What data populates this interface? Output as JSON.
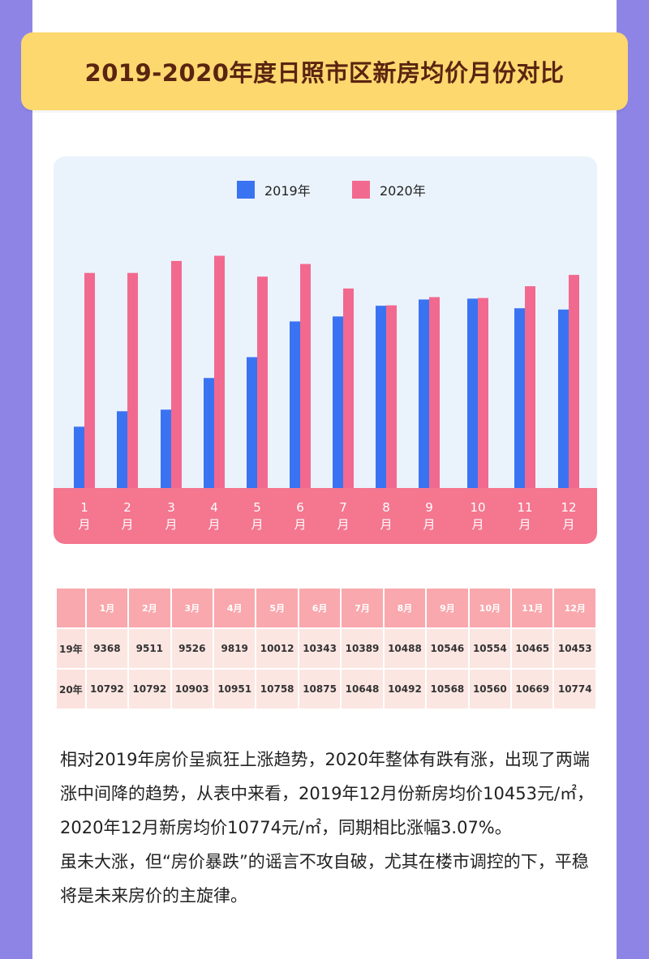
{
  "header": {
    "title": "2019-2020年度日照市区新房均价月份对比"
  },
  "colors": {
    "series_2019": "#3a73f2",
    "series_2020": "#f2698f",
    "banner": "#fcd86e",
    "axis_band": "#f4768f",
    "panel": "#eaf3fc"
  },
  "chart_data": {
    "type": "bar",
    "categories": [
      "1\n月",
      "2\n月",
      "3\n月",
      "4\n月",
      "5\n月",
      "6\n月",
      "7\n月",
      "8\n月",
      "9\n月",
      "10\n月",
      "11\n月",
      "12\n月"
    ],
    "series": [
      {
        "name": "2019年",
        "values": [
          9368,
          9511,
          9526,
          9819,
          10012,
          10343,
          10389,
          10488,
          10546,
          10554,
          10465,
          10453
        ]
      },
      {
        "name": "2020年",
        "values": [
          10792,
          10792,
          10903,
          10951,
          10758,
          10875,
          10648,
          10492,
          10568,
          10560,
          10669,
          10774
        ]
      }
    ],
    "legend_position": "top-center",
    "grid": false
  },
  "table": {
    "columns": [
      "",
      "1月",
      "2月",
      "3月",
      "4月",
      "5月",
      "6月",
      "7月",
      "8月",
      "9月",
      "10月",
      "11月",
      "12月"
    ],
    "rows": [
      {
        "label": "19年",
        "values": [
          "9368",
          "9511",
          "9526",
          "9819",
          "10012",
          "10343",
          "10389",
          "10488",
          "10546",
          "10554",
          "10465",
          "10453"
        ]
      },
      {
        "label": "20年",
        "values": [
          "10792",
          "10792",
          "10903",
          "10951",
          "10758",
          "10875",
          "10648",
          "10492",
          "10568",
          "10560",
          "10669",
          "10774"
        ]
      }
    ]
  },
  "paragraphs": [
    "相对2019年房价呈疯狂上涨趋势，2020年整体有跌有涨，出现了两端涨中间降的趋势，从表中来看，2019年12月份新房均价10453元/㎡，2020年12月新房均价10774元/㎡，同期相比涨幅3.07%。",
    "虽未大涨，但“房价暴跌”的谣言不攻自破，尤其在楼市调控的下，平稳将是未来房价的主旋律。"
  ]
}
